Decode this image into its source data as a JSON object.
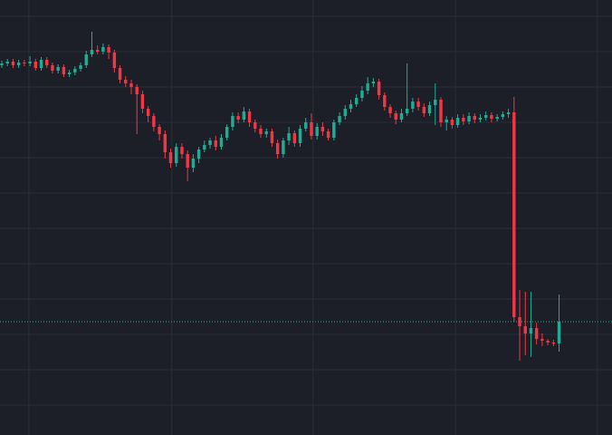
{
  "chart_data": {
    "type": "candlestick",
    "up_color": "#22ab94",
    "down_color": "#f23645",
    "grid": true,
    "grid_color": "#2a2e39",
    "last_price_line": true,
    "xlim": [
      -0.32,
      108.4
    ],
    "xticks": [
      4.8,
      30.2,
      55.3,
      80.6,
      105.8
    ],
    "ylim": [
      0,
      480
    ],
    "yticks": [
      33,
      72,
      111,
      150,
      189,
      228,
      267,
      306,
      345,
      384,
      423,
      462
    ],
    "x": [
      0,
      1,
      2,
      3,
      4,
      5,
      6,
      7,
      8,
      9,
      10,
      11,
      12,
      13,
      14,
      15,
      16,
      17,
      18,
      19,
      20,
      21,
      22,
      23,
      24,
      25,
      26,
      27,
      28,
      29,
      30,
      31,
      32,
      33,
      34,
      35,
      36,
      37,
      38,
      39,
      40,
      41,
      42,
      43,
      44,
      45,
      46,
      47,
      48,
      49,
      50,
      51,
      52,
      53,
      54,
      55,
      56,
      57,
      58,
      59,
      60,
      61,
      62,
      63,
      64,
      65,
      66,
      67,
      68,
      69,
      70,
      71,
      72,
      73,
      74,
      75,
      76,
      77,
      78,
      79,
      80,
      81,
      82,
      83,
      84,
      85,
      86,
      87,
      88,
      89,
      90,
      91,
      92,
      93,
      94,
      95,
      96,
      97,
      98,
      99
    ],
    "open": [
      408,
      410,
      412,
      408,
      411,
      410,
      412,
      405,
      414,
      408,
      402,
      406,
      398,
      400,
      404,
      408,
      420,
      425,
      423,
      428,
      422,
      405,
      392,
      388,
      384,
      376,
      360,
      352,
      340,
      332,
      312,
      300,
      318,
      310,
      295,
      305,
      315,
      320,
      325,
      318,
      328,
      340,
      352,
      348,
      357,
      345,
      338,
      332,
      335,
      322,
      310,
      325,
      333,
      322,
      338,
      345,
      330,
      340,
      335,
      328,
      345,
      352,
      360,
      365,
      372,
      380,
      388,
      390,
      375,
      362,
      355,
      348,
      355,
      360,
      368,
      362,
      355,
      364,
      370,
      345,
      348,
      342,
      350,
      346,
      352,
      348,
      350,
      353,
      349,
      351,
      354,
      356,
      130,
      120,
      112,
      118,
      106,
      104,
      102,
      101
    ],
    "high": [
      413,
      415,
      415,
      414,
      414,
      418,
      415,
      417,
      417,
      411,
      409,
      409,
      403,
      407,
      411,
      424,
      445,
      430,
      432,
      431,
      425,
      408,
      396,
      392,
      387,
      380,
      363,
      355,
      343,
      336,
      316,
      322,
      322,
      314,
      310,
      318,
      325,
      328,
      330,
      332,
      343,
      356,
      356,
      362,
      360,
      348,
      342,
      338,
      338,
      326,
      328,
      340,
      336,
      342,
      350,
      355,
      344,
      345,
      338,
      348,
      356,
      364,
      370,
      376,
      385,
      395,
      394,
      393,
      378,
      365,
      358,
      360,
      410,
      372,
      372,
      366,
      368,
      388,
      373,
      352,
      351,
      354,
      354,
      356,
      355,
      354,
      357,
      356,
      354,
      357,
      360,
      373,
      160,
      158,
      158,
      124,
      112,
      106,
      105,
      155
    ],
    "low": [
      405,
      407,
      405,
      405,
      407,
      407,
      402,
      402,
      405,
      399,
      399,
      395,
      395,
      397,
      401,
      405,
      417,
      420,
      420,
      415,
      400,
      388,
      384,
      376,
      332,
      355,
      345,
      335,
      325,
      305,
      295,
      296,
      305,
      280,
      290,
      300,
      312,
      316,
      314,
      315,
      325,
      336,
      344,
      345,
      340,
      334,
      328,
      328,
      318,
      305,
      306,
      320,
      318,
      318,
      335,
      326,
      326,
      330,
      325,
      325,
      342,
      348,
      356,
      362,
      368,
      376,
      384,
      370,
      358,
      350,
      343,
      345,
      352,
      356,
      358,
      351,
      352,
      342,
      340,
      336,
      338,
      339,
      342,
      343,
      344,
      345,
      347,
      345,
      346,
      348,
      350,
      125,
      82,
      88,
      86,
      100,
      98,
      99,
      98,
      92
    ],
    "close": [
      410,
      412,
      408,
      411,
      410,
      412,
      405,
      414,
      408,
      402,
      406,
      398,
      400,
      404,
      408,
      420,
      425,
      423,
      428,
      422,
      405,
      392,
      388,
      384,
      376,
      360,
      352,
      340,
      332,
      312,
      300,
      318,
      310,
      295,
      305,
      315,
      320,
      325,
      318,
      328,
      340,
      352,
      348,
      357,
      345,
      338,
      332,
      335,
      322,
      310,
      325,
      333,
      322,
      338,
      345,
      330,
      340,
      335,
      328,
      345,
      352,
      360,
      365,
      372,
      380,
      388,
      390,
      375,
      362,
      355,
      348,
      355,
      360,
      368,
      362,
      355,
      364,
      370,
      345,
      348,
      342,
      350,
      346,
      352,
      348,
      350,
      353,
      349,
      351,
      354,
      356,
      130,
      120,
      112,
      118,
      106,
      104,
      102,
      101,
      125
    ]
  }
}
